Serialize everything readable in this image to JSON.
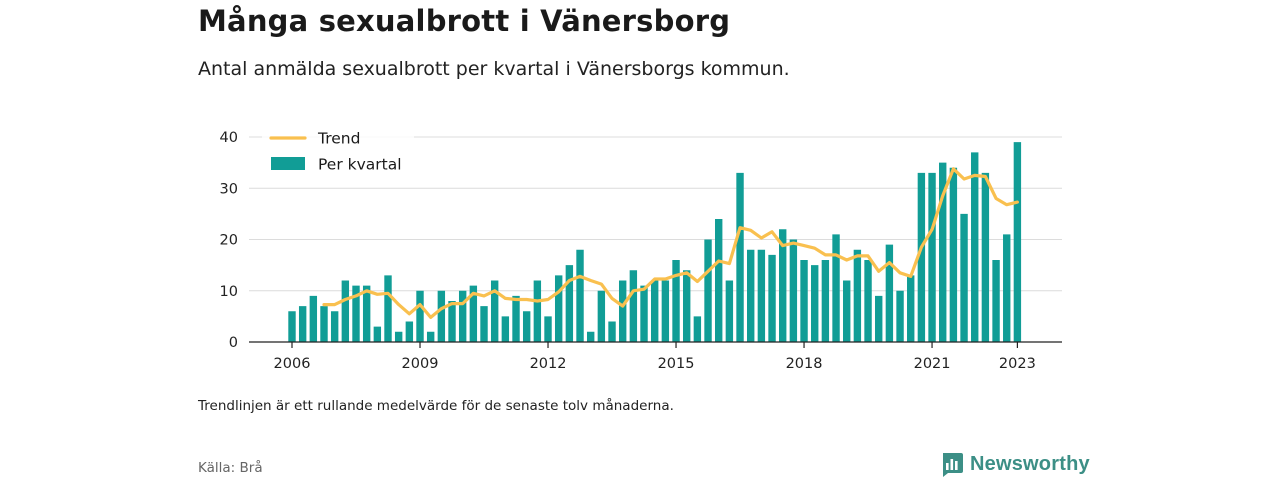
{
  "header": {
    "title": "Många sexualbrott i Vänersborg",
    "subtitle": "Antal anmälda sexualbrott per kvartal i Vänersborgs kommun."
  },
  "footer": {
    "note": "Trendlinjen är ett rullande medelvärde för de senaste tolv månaderna.",
    "source": "Källa: Brå",
    "brand": "Newsworthy"
  },
  "colors": {
    "bar": "#119d96",
    "trend": "#f9c04f",
    "brand": "#3c8f86"
  },
  "chart_data": {
    "type": "bar",
    "title": "",
    "xlabel": "",
    "ylabel": "",
    "ylim": [
      0,
      40
    ],
    "yticks": [
      0,
      10,
      20,
      30,
      40
    ],
    "xticks": [
      2006,
      2009,
      2012,
      2015,
      2018,
      2021,
      2023
    ],
    "grid": true,
    "legend_position": "top-left",
    "legend": [
      {
        "key": "trend",
        "label": "Trend",
        "kind": "line"
      },
      {
        "key": "bars",
        "label": "Per kvartal",
        "kind": "bar"
      }
    ],
    "x_quarters": [
      "2006-Q1",
      "2006-Q2",
      "2006-Q3",
      "2006-Q4",
      "2007-Q1",
      "2007-Q2",
      "2007-Q3",
      "2007-Q4",
      "2008-Q1",
      "2008-Q2",
      "2008-Q3",
      "2008-Q4",
      "2009-Q1",
      "2009-Q2",
      "2009-Q3",
      "2009-Q4",
      "2010-Q1",
      "2010-Q2",
      "2010-Q3",
      "2010-Q4",
      "2011-Q1",
      "2011-Q2",
      "2011-Q3",
      "2011-Q4",
      "2012-Q1",
      "2012-Q2",
      "2012-Q3",
      "2012-Q4",
      "2013-Q1",
      "2013-Q2",
      "2013-Q3",
      "2013-Q4",
      "2014-Q1",
      "2014-Q2",
      "2014-Q3",
      "2014-Q4",
      "2015-Q1",
      "2015-Q2",
      "2015-Q3",
      "2015-Q4",
      "2016-Q1",
      "2016-Q2",
      "2016-Q3",
      "2016-Q4",
      "2017-Q1",
      "2017-Q2",
      "2017-Q3",
      "2017-Q4",
      "2018-Q1",
      "2018-Q2",
      "2018-Q3",
      "2018-Q4",
      "2019-Q1",
      "2019-Q2",
      "2019-Q3",
      "2019-Q4",
      "2020-Q1",
      "2020-Q2",
      "2020-Q3",
      "2020-Q4",
      "2021-Q1",
      "2021-Q2",
      "2021-Q3",
      "2021-Q4",
      "2022-Q1",
      "2022-Q2",
      "2022-Q3",
      "2022-Q4",
      "2023-Q1"
    ],
    "series": [
      {
        "key": "bars",
        "type": "bar",
        "values": [
          6,
          7,
          9,
          7,
          6,
          12,
          11,
          11,
          3,
          13,
          2,
          4,
          10,
          2,
          10,
          8,
          10,
          11,
          7,
          12,
          5,
          9,
          6,
          12,
          5,
          13,
          15,
          18,
          2,
          10,
          4,
          12,
          14,
          11,
          12,
          12,
          16,
          14,
          5,
          20,
          24,
          12,
          33,
          18,
          18,
          17,
          22,
          20,
          16,
          15,
          16,
          21,
          12,
          18,
          16,
          9,
          19,
          10,
          13,
          33,
          33,
          35,
          34,
          25,
          37,
          33,
          16,
          21,
          39
        ]
      },
      {
        "key": "trend",
        "type": "line",
        "values": [
          null,
          null,
          null,
          7.3,
          7.3,
          8.3,
          9.0,
          10.0,
          9.3,
          9.5,
          7.3,
          5.5,
          7.3,
          4.8,
          6.5,
          7.5,
          7.5,
          9.5,
          9.0,
          10.0,
          8.5,
          8.3,
          8.3,
          8.0,
          8.3,
          9.8,
          12.0,
          12.8,
          12.0,
          11.3,
          8.5,
          7.0,
          10.0,
          10.3,
          12.3,
          12.3,
          13.0,
          13.5,
          11.8,
          13.8,
          15.8,
          15.3,
          22.3,
          21.8,
          20.3,
          21.5,
          18.8,
          19.3,
          18.8,
          18.3,
          17.0,
          17.0,
          16.0,
          16.8,
          16.8,
          13.8,
          15.5,
          13.5,
          12.8,
          18.5,
          22.0,
          28.5,
          33.8,
          31.8,
          32.5,
          32.3,
          28.0,
          26.8,
          27.3
        ]
      }
    ]
  }
}
